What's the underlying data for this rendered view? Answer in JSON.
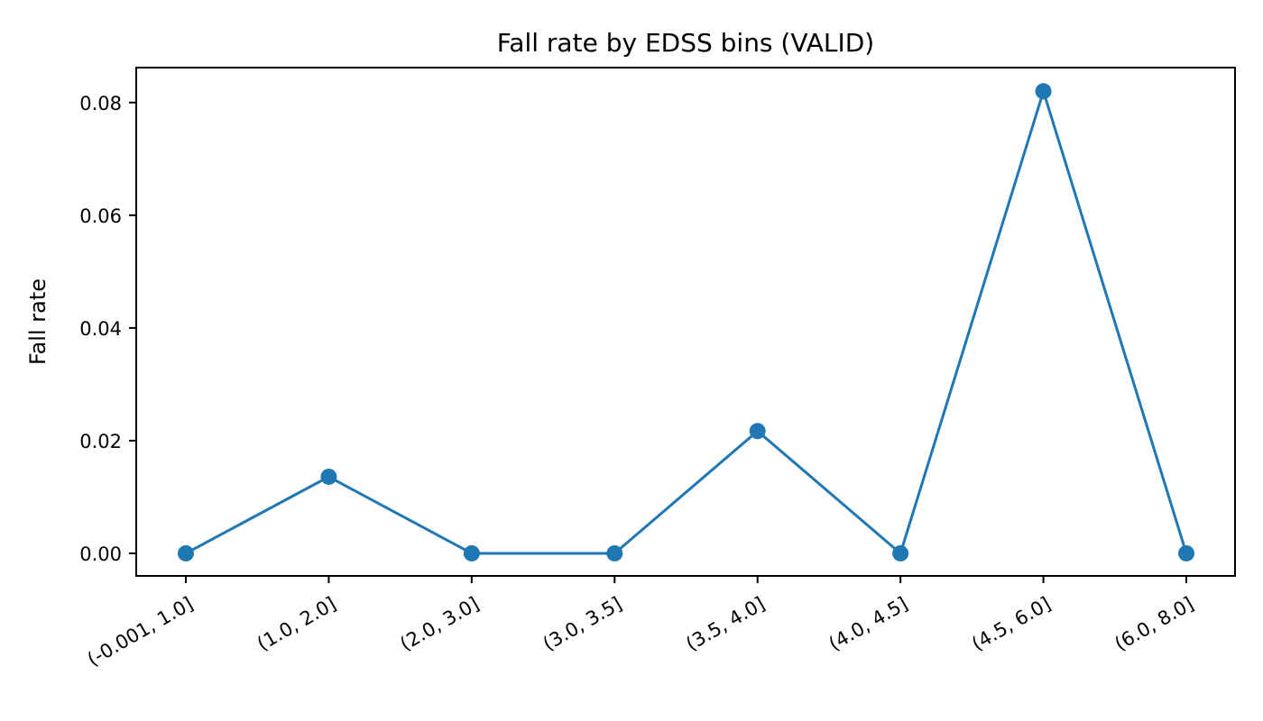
{
  "chart_data": {
    "type": "line",
    "title": "Fall rate by EDSS bins (VALID)",
    "xlabel": "",
    "ylabel": "Fall rate",
    "categories": [
      "(-0.001, 1.0]",
      "(1.0, 2.0]",
      "(2.0, 3.0]",
      "(3.0, 3.5]",
      "(3.5, 4.0]",
      "(4.0, 4.5]",
      "(4.5, 6.0]",
      "(6.0, 8.0]"
    ],
    "series": [
      {
        "values": [
          0.0,
          0.0136,
          0.0,
          0.0,
          0.0217,
          0.0,
          0.082,
          0.0
        ],
        "color": "#1f77b4",
        "marker": "circle"
      }
    ],
    "yticks": [
      "0.00",
      "0.02",
      "0.04",
      "0.06",
      "0.08"
    ],
    "ylim": [
      -0.004,
      0.0862
    ],
    "grid": false,
    "legend": "none"
  }
}
